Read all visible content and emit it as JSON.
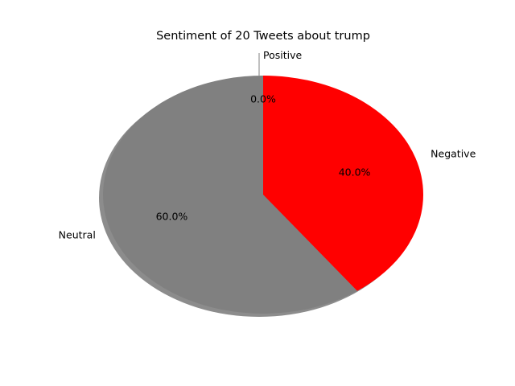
{
  "chart_data": {
    "type": "pie",
    "title": "Sentiment of 20 Tweets about trump",
    "slices": [
      {
        "label": "Positive",
        "value": 0.0,
        "pct_label": "0.0%",
        "color": "#00ff00"
      },
      {
        "label": "Neutral",
        "value": 60.0,
        "pct_label": "60.0%",
        "color": "#808080"
      },
      {
        "label": "Negative",
        "value": 40.0,
        "pct_label": "40.0%",
        "color": "#ff0000"
      }
    ],
    "start_angle_deg": 90,
    "direction": "counterclockwise",
    "shadow": true,
    "legend": "none"
  }
}
